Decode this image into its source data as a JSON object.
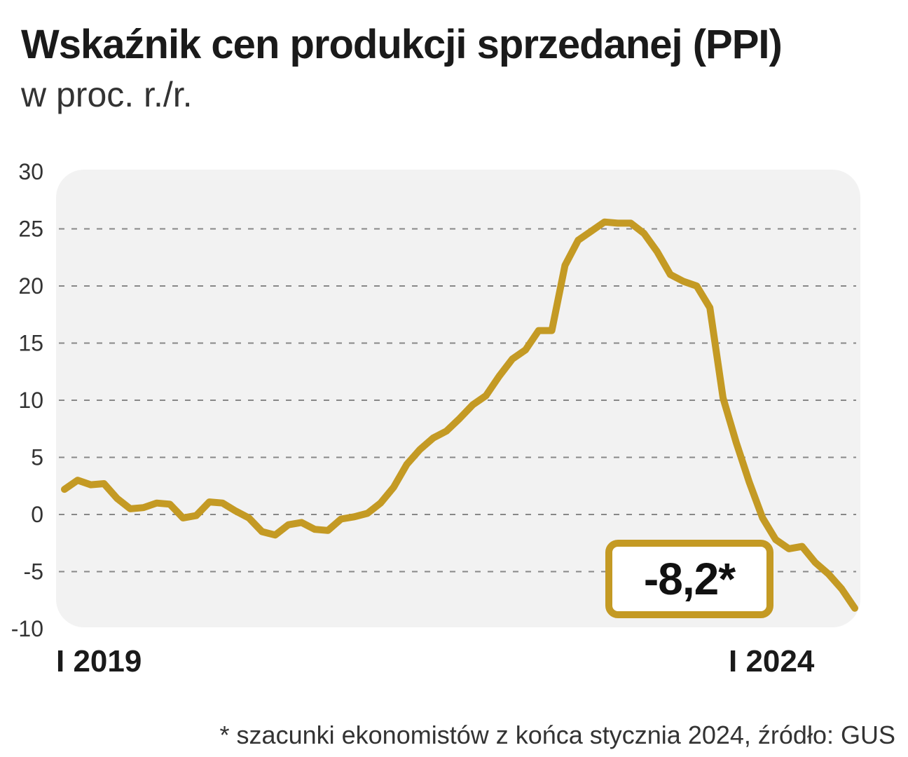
{
  "header": {
    "title": "Wskaźnik cen produkcji sprzedanej (PPI)",
    "subtitle": "w proc. r./r."
  },
  "callout": {
    "label": "-8,2*"
  },
  "footnote": "* szacunki ekonomistów z końca stycznia 2024, źródło: GUS",
  "colors": {
    "line": "#c49a24",
    "plot_bg": "#f2f2f2",
    "grid": "#888888"
  },
  "chart_data": {
    "type": "line",
    "title": "Wskaźnik cen produkcji sprzedanej (PPI)",
    "ylabel": "w proc. r./r.",
    "xlabel": "",
    "ylim": [
      -10,
      30
    ],
    "yticks": [
      30,
      25,
      20,
      15,
      10,
      5,
      0,
      -5,
      -10
    ],
    "ytick_labels": [
      "30",
      "25",
      "20",
      "15",
      "10",
      "5",
      "0",
      "-5",
      "-10"
    ],
    "grid": true,
    "x_ticks": [
      {
        "index": 0,
        "label": "I 2019"
      },
      {
        "index": 60,
        "label": "I 2024"
      }
    ],
    "series": [
      {
        "name": "PPI",
        "values": [
          2.2,
          3.0,
          2.6,
          2.7,
          1.4,
          0.5,
          0.6,
          1.0,
          0.9,
          -0.3,
          -0.1,
          1.1,
          1.0,
          0.3,
          -0.3,
          -1.5,
          -1.8,
          -0.9,
          -0.7,
          -1.3,
          -1.4,
          -0.4,
          -0.2,
          0.1,
          1.0,
          2.4,
          4.4,
          5.7,
          6.7,
          7.3,
          8.4,
          9.6,
          10.4,
          12.1,
          13.6,
          14.4,
          16.1,
          16.1,
          21.8,
          24.0,
          24.8,
          25.6,
          25.5,
          25.5,
          24.6,
          23.0,
          21.0,
          20.4,
          20.0,
          18.1,
          10.2,
          6.3,
          2.8,
          -0.3,
          -2.2,
          -3.0,
          -2.8,
          -4.2,
          -5.2,
          -6.5,
          -8.2
        ]
      }
    ]
  }
}
